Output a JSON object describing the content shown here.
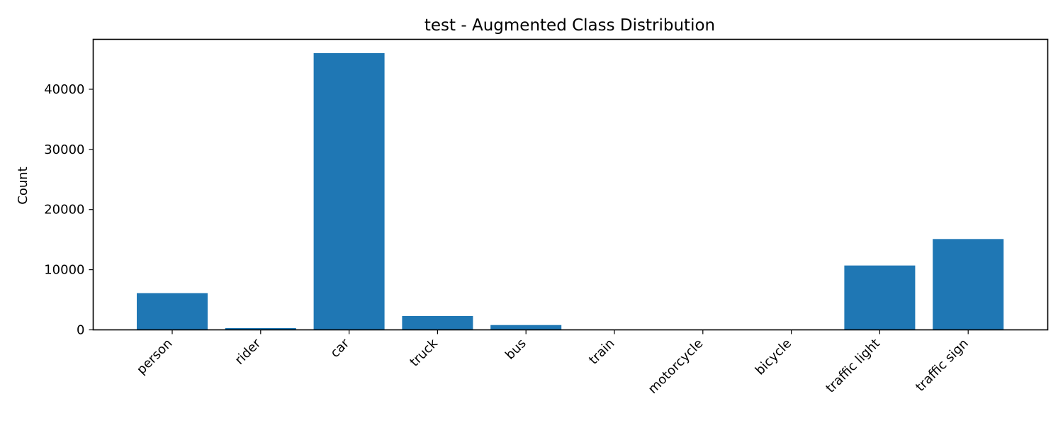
{
  "chart_data": {
    "type": "bar",
    "title": "test - Augmented Class Distribution",
    "xlabel": "",
    "ylabel": "Count",
    "categories": [
      "person",
      "rider",
      "car",
      "truck",
      "bus",
      "train",
      "motorcycle",
      "bicycle",
      "traffic light",
      "traffic sign"
    ],
    "values": [
      6100,
      300,
      46000,
      2300,
      800,
      0,
      0,
      0,
      10700,
      15100
    ],
    "ylim": [
      0,
      48300
    ],
    "yticks": [
      0,
      10000,
      20000,
      30000,
      40000
    ],
    "grid": false,
    "bar_color": "#1f77b4"
  }
}
